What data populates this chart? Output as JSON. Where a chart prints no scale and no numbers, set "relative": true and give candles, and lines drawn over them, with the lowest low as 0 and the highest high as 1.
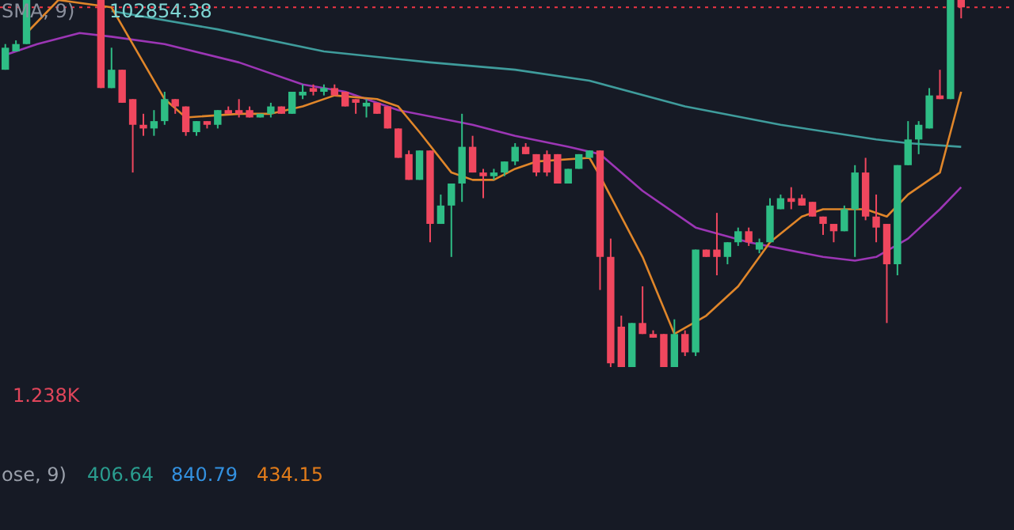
{
  "chart_data": {
    "type": "candlestick",
    "relative": true,
    "categories": [
      null,
      null,
      null,
      null,
      null,
      null,
      null,
      null,
      null,
      null,
      null,
      null,
      null,
      null,
      null,
      null,
      null,
      null,
      null,
      null,
      null,
      null,
      null,
      null,
      null,
      null,
      null,
      null,
      null,
      null,
      null,
      null,
      null,
      null,
      null,
      null,
      null,
      null,
      null,
      null,
      null,
      null,
      null,
      null,
      null,
      null,
      null,
      null,
      null,
      null,
      null,
      null,
      null,
      null,
      null,
      null,
      null,
      null,
      null,
      null,
      null,
      null,
      null,
      null,
      null,
      null,
      null,
      null,
      null,
      null,
      null,
      null,
      null,
      null,
      null,
      null,
      null,
      null,
      null,
      null,
      null,
      null,
      null,
      null,
      null,
      null,
      null,
      null,
      null,
      null,
      null
    ],
    "ohlc": [
      [
        0.81,
        0.88,
        0.81,
        0.87
      ],
      [
        0.86,
        0.89,
        0.86,
        0.88
      ],
      [
        0.88,
        1.0,
        0.88,
        1.0
      ],
      null,
      null,
      null,
      null,
      null,
      null,
      [
        1.0,
        1.0,
        0.76,
        0.76
      ],
      [
        0.76,
        0.87,
        0.76,
        0.81
      ],
      [
        0.81,
        0.81,
        0.72,
        0.72
      ],
      [
        0.73,
        0.73,
        0.53,
        0.66
      ],
      [
        0.66,
        0.69,
        0.63,
        0.65
      ],
      [
        0.65,
        0.7,
        0.63,
        0.67
      ],
      [
        0.67,
        0.75,
        0.66,
        0.73
      ],
      [
        0.73,
        0.73,
        0.69,
        0.71
      ],
      [
        0.71,
        0.71,
        0.63,
        0.64
      ],
      [
        0.64,
        0.67,
        0.63,
        0.67
      ],
      [
        0.67,
        0.67,
        0.65,
        0.66
      ],
      [
        0.66,
        0.7,
        0.65,
        0.7
      ],
      [
        0.7,
        0.71,
        0.69,
        0.69
      ],
      [
        0.7,
        0.73,
        0.68,
        0.69
      ],
      [
        0.7,
        0.71,
        0.68,
        0.68
      ],
      [
        0.68,
        0.69,
        0.68,
        0.69
      ],
      [
        0.69,
        0.72,
        0.68,
        0.71
      ],
      [
        0.71,
        0.71,
        0.69,
        0.69
      ],
      [
        0.69,
        0.75,
        0.69,
        0.75
      ],
      [
        0.74,
        0.77,
        0.73,
        0.75
      ],
      [
        0.76,
        0.77,
        0.74,
        0.75
      ],
      [
        0.75,
        0.77,
        0.74,
        0.76
      ],
      [
        0.76,
        0.77,
        0.74,
        0.74
      ],
      [
        0.75,
        0.75,
        0.71,
        0.71
      ],
      [
        0.73,
        0.73,
        0.69,
        0.72
      ],
      [
        0.71,
        0.73,
        0.68,
        0.72
      ],
      [
        0.72,
        0.72,
        0.69,
        0.69
      ],
      [
        0.71,
        0.71,
        0.65,
        0.65
      ],
      [
        0.65,
        0.65,
        0.57,
        0.57
      ],
      [
        0.58,
        0.59,
        0.51,
        0.51
      ],
      [
        0.51,
        0.59,
        0.51,
        0.59
      ],
      [
        0.59,
        0.59,
        0.34,
        0.39
      ],
      [
        0.39,
        0.47,
        0.39,
        0.44
      ],
      [
        0.44,
        0.5,
        0.3,
        0.5
      ],
      [
        0.5,
        0.69,
        0.45,
        0.6
      ],
      [
        0.6,
        0.63,
        0.53,
        0.53
      ],
      [
        0.53,
        0.54,
        0.46,
        0.52
      ],
      [
        0.52,
        0.54,
        0.51,
        0.53
      ],
      [
        0.53,
        0.56,
        0.52,
        0.56
      ],
      [
        0.56,
        0.61,
        0.55,
        0.6
      ],
      [
        0.6,
        0.61,
        0.58,
        0.58
      ],
      [
        0.58,
        0.58,
        0.52,
        0.53
      ],
      [
        0.58,
        0.59,
        0.52,
        0.53
      ],
      [
        0.58,
        0.58,
        0.5,
        0.5
      ],
      [
        0.5,
        0.54,
        0.5,
        0.54
      ],
      [
        0.54,
        0.58,
        0.54,
        0.58
      ],
      [
        0.57,
        0.59,
        0.57,
        0.59
      ],
      [
        0.59,
        0.59,
        0.21,
        0.3
      ],
      [
        0.3,
        0.35,
        0.0,
        0.01
      ],
      [
        0.11,
        0.14,
        0.0,
        0.0
      ],
      [
        0.0,
        0.12,
        0.0,
        0.12
      ],
      [
        0.12,
        0.22,
        0.09,
        0.09
      ],
      [
        0.09,
        0.1,
        0.08,
        0.08
      ],
      [
        0.09,
        0.09,
        0.0,
        0.0
      ],
      [
        0.0,
        0.13,
        0.0,
        0.09
      ],
      [
        0.09,
        0.1,
        0.03,
        0.04
      ],
      [
        0.04,
        0.32,
        0.03,
        0.32
      ],
      [
        0.32,
        0.32,
        0.3,
        0.3
      ],
      [
        0.32,
        0.42,
        0.25,
        0.3
      ],
      [
        0.3,
        0.34,
        0.28,
        0.34
      ],
      [
        0.34,
        0.38,
        0.33,
        0.37
      ],
      [
        0.37,
        0.38,
        0.33,
        0.34
      ],
      [
        0.32,
        0.35,
        0.31,
        0.34
      ],
      [
        0.34,
        0.46,
        0.34,
        0.44
      ],
      [
        0.43,
        0.47,
        0.43,
        0.46
      ],
      [
        0.46,
        0.49,
        0.43,
        0.45
      ],
      [
        0.46,
        0.47,
        0.44,
        0.44
      ],
      [
        0.45,
        0.45,
        0.41,
        0.41
      ],
      [
        0.41,
        0.41,
        0.36,
        0.39
      ],
      [
        0.39,
        0.39,
        0.34,
        0.37
      ],
      [
        0.37,
        0.44,
        0.37,
        0.43
      ],
      [
        0.43,
        0.55,
        0.3,
        0.53
      ],
      [
        0.53,
        0.57,
        0.4,
        0.41
      ],
      [
        0.41,
        0.47,
        0.34,
        0.38
      ],
      [
        0.39,
        0.39,
        0.12,
        0.28
      ],
      [
        0.28,
        0.55,
        0.25,
        0.55
      ],
      [
        0.55,
        0.67,
        0.55,
        0.62
      ],
      [
        0.62,
        0.67,
        0.58,
        0.66
      ],
      [
        0.65,
        0.76,
        0.65,
        0.74
      ],
      [
        0.74,
        0.81,
        0.73,
        0.73
      ],
      [
        0.73,
        1.0,
        0.73,
        1.0
      ],
      [
        1.0,
        1.0,
        0.95,
        0.98
      ]
    ],
    "series": [
      {
        "type": "line",
        "color": "#e0862a",
        "values": [
          null,
          null,
          0.91,
          null,
          null,
          1.0,
          null,
          null,
          null,
          null,
          0.98,
          null,
          null,
          null,
          null,
          0.73,
          null,
          0.68,
          null,
          null,
          null,
          null,
          0.69,
          null,
          null,
          0.69,
          null,
          null,
          0.71,
          null,
          null,
          0.74,
          null,
          null,
          null,
          0.73,
          null,
          0.71,
          null,
          0.64,
          null,
          null,
          0.53,
          null,
          0.51,
          null,
          0.51,
          null,
          0.54,
          null,
          0.56,
          null,
          null,
          null,
          null,
          0.57,
          0.52,
          null,
          null,
          null,
          0.3,
          null,
          null,
          0.09,
          null,
          null,
          0.14,
          null,
          null,
          0.22,
          null,
          null,
          0.34,
          null,
          null,
          0.41,
          null,
          0.43,
          null,
          null,
          null,
          0.43,
          null,
          0.41,
          null,
          0.47,
          null,
          null,
          0.53,
          0.64,
          0.75
        ]
      },
      {
        "type": "line",
        "color": "#9c36b5",
        "values": [
          0.85,
          null,
          null,
          0.88,
          null,
          null,
          null,
          0.91,
          null,
          null,
          0.9,
          null,
          null,
          null,
          null,
          0.88,
          null,
          null,
          null,
          null,
          null,
          null,
          0.83,
          null,
          null,
          null,
          null,
          null,
          0.77,
          null,
          null,
          null,
          0.75,
          null,
          null,
          null,
          null,
          0.7,
          null,
          null,
          null,
          null,
          null,
          null,
          0.66,
          null,
          null,
          null,
          0.63,
          null,
          null,
          null,
          null,
          0.6,
          null,
          null,
          0.58,
          null,
          null,
          null,
          0.48,
          null,
          null,
          null,
          null,
          0.38,
          null,
          null,
          null,
          null,
          0.34,
          null,
          null,
          null,
          null,
          null,
          null,
          0.3,
          null,
          null,
          0.29,
          null,
          0.3,
          null,
          null,
          0.35,
          null,
          null,
          0.43,
          null,
          0.49
        ]
      },
      {
        "type": "line",
        "color": "#3f9c9c",
        "values": [
          null,
          null,
          null,
          null,
          null,
          null,
          null,
          null,
          null,
          null,
          0.97,
          null,
          null,
          null,
          null,
          null,
          null,
          null,
          null,
          null,
          0.92,
          null,
          null,
          null,
          null,
          null,
          null,
          null,
          null,
          null,
          0.86,
          null,
          null,
          null,
          null,
          null,
          null,
          null,
          null,
          null,
          0.83,
          null,
          null,
          null,
          null,
          null,
          null,
          null,
          0.81,
          null,
          null,
          null,
          null,
          null,
          null,
          0.78,
          null,
          null,
          null,
          null,
          null,
          null,
          null,
          null,
          0.71,
          null,
          null,
          null,
          null,
          null,
          null,
          null,
          null,
          0.66,
          null,
          null,
          null,
          null,
          null,
          null,
          null,
          null,
          0.62,
          null,
          null,
          0.61,
          null,
          null,
          null,
          null,
          0.6
        ]
      }
    ],
    "ref_lines": [
      {
        "axis": "y",
        "value": 0.98,
        "color": "#f23645",
        "line_style": "dotted"
      }
    ],
    "annotations": [
      "SMA, 9)",
      "102854.38",
      "1.238K",
      "ose, 9)",
      "406.64",
      "840.79",
      "434.15"
    ]
  }
}
